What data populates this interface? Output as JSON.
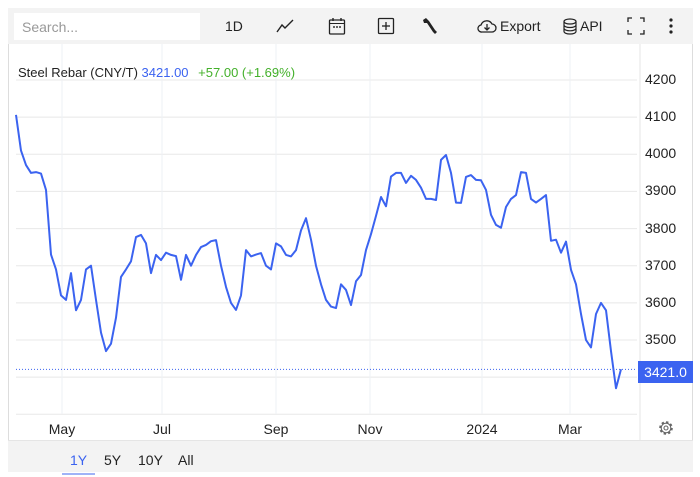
{
  "toolbar": {
    "search_placeholder": "Search...",
    "interval": "1D",
    "export_label": "Export",
    "api_label": "API"
  },
  "range_buttons": [
    {
      "label": "1Y",
      "active": true
    },
    {
      "label": "5Y"
    },
    {
      "label": "10Y"
    },
    {
      "label": "All"
    }
  ],
  "colors": {
    "line": "#3b63f0",
    "change_up": "#43b02a",
    "grid": "#e8e8e8",
    "tag": "#3b63f0"
  },
  "chart_data": {
    "type": "line",
    "title": "Steel Rebar (CNY/T)",
    "last_price": "3421.00",
    "change": "+57.00 (+1.69%)",
    "last_label": "3421.0",
    "last_value": 3421,
    "ylim": [
      3300,
      4250
    ],
    "y_ticks": [
      3500,
      3600,
      3700,
      3800,
      3900,
      4000,
      4100,
      4200
    ],
    "x_ticks": [
      {
        "label": "May",
        "at_index": 9.2
      },
      {
        "label": "Jul",
        "at_index": 29.2
      },
      {
        "label": "Sep",
        "at_index": 52
      },
      {
        "label": "Nov",
        "at_index": 70.8
      },
      {
        "label": "2024",
        "at_index": 93.2
      },
      {
        "label": "Mar",
        "at_index": 110.8
      }
    ],
    "grid": true,
    "values": [
      4106,
      4010,
      3971,
      3950,
      3952,
      3948,
      3904,
      3730,
      3690,
      3620,
      3608,
      3680,
      3580,
      3608,
      3690,
      3700,
      3608,
      3520,
      3470,
      3490,
      3560,
      3670,
      3690,
      3712,
      3777,
      3783,
      3760,
      3680,
      3729,
      3715,
      3735,
      3729,
      3726,
      3662,
      3729,
      3700,
      3729,
      3750,
      3756,
      3766,
      3769,
      3700,
      3643,
      3600,
      3581,
      3620,
      3742,
      3725,
      3730,
      3734,
      3700,
      3690,
      3760,
      3752,
      3729,
      3725,
      3742,
      3795,
      3828,
      3770,
      3700,
      3650,
      3608,
      3590,
      3586,
      3650,
      3635,
      3594,
      3658,
      3675,
      3742,
      3785,
      3834,
      3885,
      3860,
      3940,
      3950,
      3950,
      3923,
      3942,
      3931,
      3910,
      3880,
      3880,
      3877,
      3985,
      3998,
      3950,
      3870,
      3869,
      3939,
      3944,
      3931,
      3930,
      3904,
      3837,
      3810,
      3802,
      3858,
      3880,
      3890,
      3952,
      3950,
      3880,
      3870,
      3880,
      3890,
      3767,
      3770,
      3735,
      3765,
      3689,
      3650,
      3570,
      3500,
      3480,
      3570,
      3600,
      3580,
      3470,
      3370,
      3421
    ]
  }
}
